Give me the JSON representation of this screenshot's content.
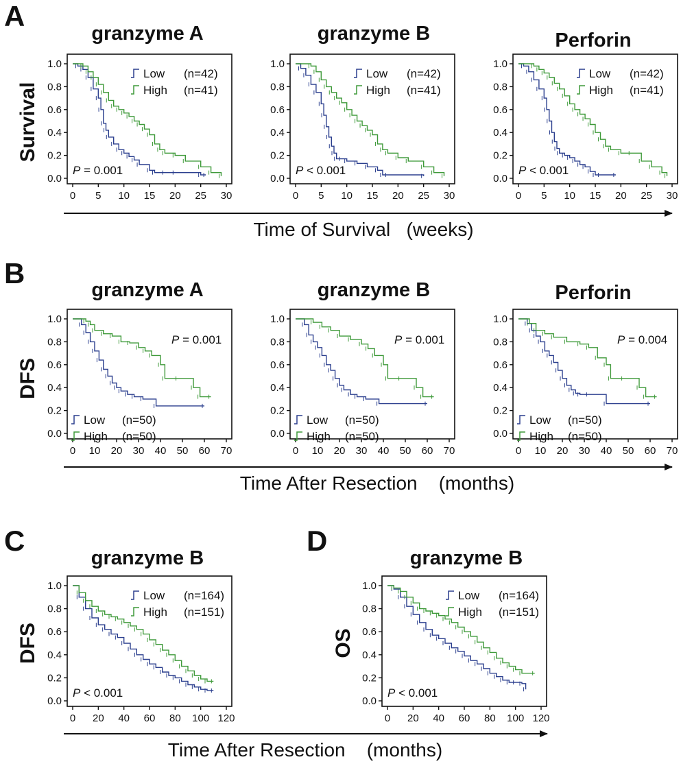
{
  "panels": {
    "A": {
      "letter": "A",
      "xlabel": "Time of Survival   (weeks)",
      "ylabel": "Survival"
    },
    "B": {
      "letter": "B",
      "xlabel": "Time After Resection    (months)",
      "ylabel": "DFS"
    },
    "C": {
      "letter": "C",
      "ylabel": "DFS"
    },
    "D": {
      "letter": "D",
      "ylabel": "OS"
    },
    "CD": {
      "xlabel": "Time After Resection    (months)"
    }
  },
  "chart_data": [
    {
      "type": "line",
      "panel": "A",
      "title": "granzyme A",
      "ylabel": "Survival",
      "xlim": [
        0,
        30
      ],
      "ylim": [
        0,
        1
      ],
      "xticks": [
        "0",
        "5",
        "10",
        "15",
        "20",
        "25",
        "30"
      ],
      "yticks": [
        "0.0",
        "0.2",
        "0.4",
        "0.6",
        "0.8",
        "1.0"
      ],
      "legend": "top-right",
      "pvalue": {
        "p": "P",
        "text": " = 0.001"
      },
      "series": [
        {
          "name": "Low",
          "n": "(n=42)",
          "color": "#2b3f8e",
          "x": [
            0,
            1,
            2,
            3,
            4,
            5,
            5.5,
            6,
            6.5,
            7,
            8,
            9,
            10,
            11,
            12,
            13,
            15,
            16,
            18,
            20,
            25,
            26
          ],
          "y": [
            1,
            0.98,
            0.95,
            0.88,
            0.78,
            0.7,
            0.6,
            0.48,
            0.42,
            0.36,
            0.3,
            0.25,
            0.22,
            0.19,
            0.16,
            0.12,
            0.07,
            0.05,
            0.05,
            0.05,
            0.03,
            0.03
          ]
        },
        {
          "name": "High",
          "n": "(n=41)",
          "color": "#3f9a3a",
          "x": [
            0,
            2,
            3,
            4,
            5,
            6,
            7,
            8,
            9,
            10,
            11,
            12,
            13,
            14,
            15,
            16,
            17,
            18,
            20,
            22,
            25,
            27,
            29
          ],
          "y": [
            1,
            0.98,
            0.93,
            0.88,
            0.82,
            0.75,
            0.68,
            0.63,
            0.6,
            0.57,
            0.54,
            0.5,
            0.47,
            0.43,
            0.38,
            0.3,
            0.25,
            0.22,
            0.2,
            0.15,
            0.1,
            0.05,
            0.02
          ]
        }
      ]
    },
    {
      "type": "line",
      "panel": "A",
      "title": "granzyme B",
      "ylabel": "Survival",
      "xlim": [
        0,
        30
      ],
      "ylim": [
        0,
        1
      ],
      "xticks": [
        "0",
        "5",
        "10",
        "15",
        "20",
        "25",
        "30"
      ],
      "yticks": [
        "0.0",
        "0.2",
        "0.4",
        "0.6",
        "0.8",
        "1.0"
      ],
      "legend": "top-right",
      "pvalue": {
        "p": "P",
        "text": " < 0.001"
      },
      "series": [
        {
          "name": "Low",
          "n": "(n=42)",
          "color": "#2b3f8e",
          "x": [
            0,
            1,
            2,
            3,
            4,
            5,
            5.5,
            6,
            6.5,
            7,
            7.5,
            8,
            9,
            10,
            12,
            14,
            16,
            17,
            18,
            25
          ],
          "y": [
            1,
            0.96,
            0.9,
            0.82,
            0.75,
            0.65,
            0.55,
            0.45,
            0.36,
            0.28,
            0.22,
            0.17,
            0.17,
            0.15,
            0.13,
            0.1,
            0.07,
            0.03,
            0.03,
            0.02
          ]
        },
        {
          "name": "High",
          "n": "(n=41)",
          "color": "#3f9a3a",
          "x": [
            0,
            3,
            4,
            5,
            6,
            7,
            8,
            9,
            10,
            11,
            12,
            13,
            14,
            15,
            16,
            17,
            18,
            20,
            22,
            25,
            27,
            29
          ],
          "y": [
            1,
            0.98,
            0.93,
            0.86,
            0.8,
            0.75,
            0.7,
            0.66,
            0.6,
            0.55,
            0.5,
            0.46,
            0.42,
            0.38,
            0.3,
            0.25,
            0.22,
            0.18,
            0.15,
            0.1,
            0.05,
            0.02
          ]
        }
      ]
    },
    {
      "type": "line",
      "panel": "A",
      "title": "Perforin",
      "ylabel": "Survival",
      "xlim": [
        0,
        30
      ],
      "ylim": [
        0,
        1
      ],
      "xticks": [
        "0",
        "5",
        "10",
        "15",
        "20",
        "25",
        "30"
      ],
      "yticks": [
        "0.0",
        "0.2",
        "0.4",
        "0.6",
        "0.8",
        "1.0"
      ],
      "legend": "top-right",
      "pvalue": {
        "p": "P",
        "text": " < 0.001"
      },
      "series": [
        {
          "name": "Low",
          "n": "(n=42)",
          "color": "#2b3f8e",
          "x": [
            0,
            1,
            2,
            3,
            4,
            5,
            5.5,
            6,
            6.5,
            7,
            7.5,
            8,
            9,
            10,
            11,
            12,
            13,
            14,
            15,
            16,
            19
          ],
          "y": [
            1,
            0.98,
            0.93,
            0.86,
            0.78,
            0.7,
            0.6,
            0.5,
            0.4,
            0.32,
            0.26,
            0.22,
            0.2,
            0.18,
            0.15,
            0.12,
            0.1,
            0.06,
            0.03,
            0.03,
            0.03
          ]
        },
        {
          "name": "High",
          "n": "(n=41)",
          "color": "#3f9a3a",
          "x": [
            0,
            3,
            4,
            5,
            6,
            7,
            8,
            9,
            10,
            11,
            12,
            13,
            14,
            15,
            16,
            17,
            18,
            20,
            22,
            24,
            26,
            28,
            29
          ],
          "y": [
            1,
            0.98,
            0.95,
            0.92,
            0.88,
            0.83,
            0.78,
            0.72,
            0.65,
            0.6,
            0.56,
            0.52,
            0.47,
            0.4,
            0.34,
            0.28,
            0.25,
            0.22,
            0.22,
            0.15,
            0.1,
            0.05,
            0.02
          ]
        }
      ]
    },
    {
      "type": "line",
      "panel": "B",
      "title": "granzyme A",
      "ylabel": "DFS",
      "xlim": [
        0,
        70
      ],
      "ylim": [
        0,
        1
      ],
      "xticks": [
        "0",
        "10",
        "20",
        "30",
        "40",
        "50",
        "60",
        "70"
      ],
      "yticks": [
        "0.0",
        "0.2",
        "0.4",
        "0.6",
        "0.8",
        "1.0"
      ],
      "legend": "bottom-left",
      "pvalue": {
        "p": "P",
        "text": " = 0.001"
      },
      "series": [
        {
          "name": "Low",
          "n": "(n=50)",
          "color": "#2b3f8e",
          "x": [
            0,
            4,
            6,
            8,
            10,
            12,
            14,
            16,
            18,
            20,
            22,
            25,
            28,
            32,
            38,
            60
          ],
          "y": [
            1,
            0.95,
            0.88,
            0.8,
            0.72,
            0.64,
            0.56,
            0.5,
            0.44,
            0.4,
            0.37,
            0.34,
            0.32,
            0.3,
            0.24,
            0.24
          ]
        },
        {
          "name": "High",
          "n": "(n=50)",
          "color": "#3f9a3a",
          "x": [
            0,
            6,
            8,
            10,
            14,
            18,
            22,
            26,
            30,
            33,
            36,
            40,
            42,
            48,
            55,
            58,
            63
          ],
          "y": [
            1,
            0.98,
            0.95,
            0.9,
            0.87,
            0.85,
            0.8,
            0.79,
            0.75,
            0.72,
            0.68,
            0.6,
            0.48,
            0.48,
            0.4,
            0.32,
            0.32
          ]
        }
      ]
    },
    {
      "type": "line",
      "panel": "B",
      "title": "granzyme B",
      "ylabel": "DFS",
      "xlim": [
        0,
        70
      ],
      "ylim": [
        0,
        1
      ],
      "xticks": [
        "0",
        "10",
        "20",
        "30",
        "40",
        "50",
        "60",
        "70"
      ],
      "yticks": [
        "0.0",
        "0.2",
        "0.4",
        "0.6",
        "0.8",
        "1.0"
      ],
      "legend": "bottom-left",
      "pvalue": {
        "p": "P",
        "text": " = 0.001"
      },
      "series": [
        {
          "name": "Low",
          "n": "(n=50)",
          "color": "#2b3f8e",
          "x": [
            0,
            4,
            6,
            8,
            10,
            12,
            14,
            16,
            18,
            20,
            22,
            25,
            28,
            32,
            38,
            60
          ],
          "y": [
            1,
            0.95,
            0.86,
            0.8,
            0.75,
            0.68,
            0.6,
            0.55,
            0.48,
            0.42,
            0.38,
            0.34,
            0.32,
            0.3,
            0.26,
            0.26
          ]
        },
        {
          "name": "High",
          "n": "(n=50)",
          "color": "#3f9a3a",
          "x": [
            0,
            8,
            12,
            16,
            20,
            25,
            30,
            33,
            36,
            40,
            42,
            48,
            55,
            58,
            63
          ],
          "y": [
            1,
            0.97,
            0.93,
            0.9,
            0.85,
            0.82,
            0.78,
            0.74,
            0.68,
            0.6,
            0.48,
            0.48,
            0.4,
            0.32,
            0.32
          ]
        }
      ]
    },
    {
      "type": "line",
      "panel": "B",
      "title": "Perforin",
      "ylabel": "DFS",
      "xlim": [
        0,
        70
      ],
      "ylim": [
        0,
        1
      ],
      "xticks": [
        "0",
        "10",
        "20",
        "30",
        "40",
        "50",
        "60",
        "70"
      ],
      "yticks": [
        "0.0",
        "0.2",
        "0.4",
        "0.6",
        "0.8",
        "1.0"
      ],
      "legend": "bottom-left",
      "pvalue": {
        "p": "P",
        "text": " = 0.004"
      },
      "series": [
        {
          "name": "Low",
          "n": "(n=50)",
          "color": "#2b3f8e",
          "x": [
            0,
            4,
            6,
            8,
            10,
            12,
            14,
            16,
            18,
            20,
            22,
            24,
            26,
            28,
            32,
            40,
            60
          ],
          "y": [
            1,
            0.96,
            0.9,
            0.85,
            0.8,
            0.72,
            0.68,
            0.62,
            0.55,
            0.48,
            0.42,
            0.38,
            0.35,
            0.34,
            0.34,
            0.26,
            0.26
          ]
        },
        {
          "name": "High",
          "n": "(n=50)",
          "color": "#3f9a3a",
          "x": [
            0,
            5,
            8,
            12,
            16,
            22,
            28,
            32,
            36,
            40,
            42,
            48,
            55,
            58,
            63
          ],
          "y": [
            1,
            0.96,
            0.9,
            0.87,
            0.84,
            0.8,
            0.78,
            0.75,
            0.66,
            0.6,
            0.48,
            0.48,
            0.4,
            0.32,
            0.32
          ]
        }
      ]
    },
    {
      "type": "line",
      "panel": "C",
      "title": "granzyme B",
      "ylabel": "DFS",
      "xlim": [
        0,
        120
      ],
      "ylim": [
        0,
        1
      ],
      "xticks": [
        "0",
        "20",
        "40",
        "60",
        "80",
        "100",
        "120"
      ],
      "yticks": [
        "0.0",
        "0.2",
        "0.4",
        "0.6",
        "0.8",
        "1.0"
      ],
      "legend": "top-right",
      "pvalue": {
        "p": "P",
        "text": " < 0.001"
      },
      "series": [
        {
          "name": "Low",
          "n": "(n=164)",
          "color": "#2b3f8e",
          "x": [
            0,
            5,
            10,
            15,
            20,
            25,
            30,
            35,
            40,
            45,
            50,
            55,
            60,
            65,
            70,
            75,
            80,
            85,
            90,
            95,
            100,
            105,
            110
          ],
          "y": [
            1,
            0.9,
            0.8,
            0.72,
            0.66,
            0.62,
            0.58,
            0.55,
            0.5,
            0.45,
            0.4,
            0.36,
            0.32,
            0.29,
            0.25,
            0.22,
            0.2,
            0.17,
            0.14,
            0.12,
            0.1,
            0.09,
            0.09
          ]
        },
        {
          "name": "High",
          "n": "(n=151)",
          "color": "#3f9a3a",
          "x": [
            0,
            5,
            10,
            15,
            20,
            25,
            30,
            35,
            40,
            45,
            50,
            55,
            60,
            65,
            70,
            75,
            80,
            85,
            90,
            95,
            100,
            105,
            110
          ],
          "y": [
            1,
            0.94,
            0.87,
            0.82,
            0.78,
            0.75,
            0.73,
            0.71,
            0.68,
            0.65,
            0.62,
            0.58,
            0.53,
            0.49,
            0.44,
            0.4,
            0.35,
            0.3,
            0.26,
            0.22,
            0.19,
            0.17,
            0.17
          ]
        }
      ]
    },
    {
      "type": "line",
      "panel": "D",
      "title": "granzyme B",
      "ylabel": "OS",
      "xlim": [
        0,
        120
      ],
      "ylim": [
        0,
        1
      ],
      "xticks": [
        "0",
        "20",
        "40",
        "60",
        "80",
        "100",
        "120"
      ],
      "yticks": [
        "0.0",
        "0.2",
        "0.4",
        "0.6",
        "0.8",
        "1.0"
      ],
      "legend": "top-right",
      "pvalue": {
        "p": "P",
        "text": " < 0.001"
      },
      "series": [
        {
          "name": "Low",
          "n": "(n=164)",
          "color": "#2b3f8e",
          "x": [
            0,
            5,
            10,
            15,
            20,
            25,
            30,
            35,
            40,
            45,
            50,
            55,
            60,
            65,
            70,
            75,
            80,
            85,
            90,
            95,
            100,
            105,
            108
          ],
          "y": [
            1,
            0.97,
            0.9,
            0.82,
            0.75,
            0.68,
            0.62,
            0.57,
            0.54,
            0.5,
            0.46,
            0.43,
            0.39,
            0.35,
            0.32,
            0.28,
            0.24,
            0.21,
            0.18,
            0.16,
            0.16,
            0.15,
            0.1
          ]
        },
        {
          "name": "High",
          "n": "(n=151)",
          "color": "#3f9a3a",
          "x": [
            0,
            5,
            10,
            15,
            20,
            25,
            30,
            35,
            40,
            45,
            50,
            55,
            60,
            65,
            70,
            75,
            80,
            85,
            90,
            95,
            100,
            105,
            115
          ],
          "y": [
            1,
            0.98,
            0.95,
            0.9,
            0.85,
            0.8,
            0.78,
            0.76,
            0.74,
            0.71,
            0.68,
            0.64,
            0.6,
            0.56,
            0.51,
            0.46,
            0.42,
            0.37,
            0.33,
            0.3,
            0.27,
            0.24,
            0.24
          ]
        }
      ]
    }
  ]
}
